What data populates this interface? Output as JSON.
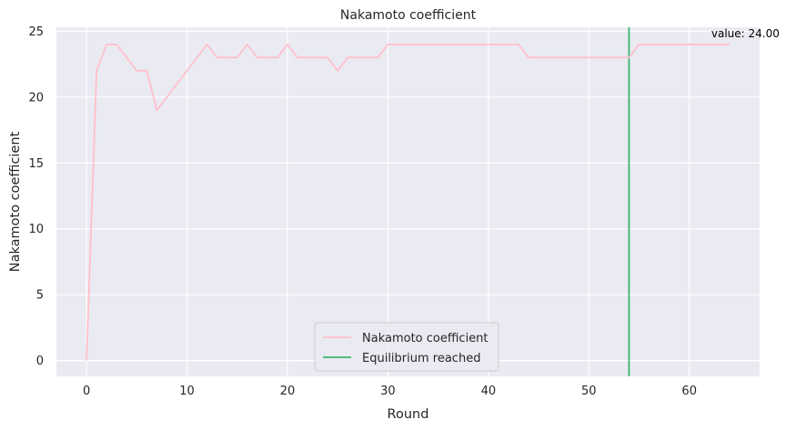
{
  "chart_data": {
    "type": "line",
    "title": "Nakamoto coefficient",
    "xlabel": "Round",
    "ylabel": "Nakamoto coefficient",
    "xlim": [
      -3,
      67
    ],
    "ylim": [
      -1.2,
      25.3
    ],
    "xticks": [
      0,
      10,
      20,
      30,
      40,
      50,
      60
    ],
    "yticks": [
      0,
      5,
      10,
      15,
      20,
      25
    ],
    "grid": true,
    "legend_position": "lower-center",
    "series": [
      {
        "name": "Nakamoto coefficient",
        "color": "#ffc0cb",
        "x": [
          0,
          1,
          2,
          3,
          4,
          5,
          6,
          7,
          8,
          9,
          10,
          11,
          12,
          13,
          14,
          15,
          16,
          17,
          18,
          19,
          20,
          21,
          22,
          23,
          24,
          25,
          26,
          27,
          28,
          29,
          30,
          31,
          32,
          33,
          34,
          35,
          36,
          37,
          38,
          39,
          40,
          41,
          42,
          43,
          44,
          45,
          46,
          47,
          48,
          49,
          50,
          51,
          52,
          53,
          54,
          55,
          56,
          57,
          58,
          59,
          60,
          61,
          62,
          63,
          64
        ],
        "y": [
          0,
          22,
          24,
          24,
          23,
          22,
          22,
          19,
          20,
          21,
          22,
          23,
          24,
          23,
          23,
          23,
          24,
          23,
          23,
          23,
          24,
          23,
          23,
          23,
          23,
          22,
          23,
          23,
          23,
          23,
          24,
          24,
          24,
          24,
          24,
          24,
          24,
          24,
          24,
          24,
          24,
          24,
          24,
          24,
          23,
          23,
          23,
          23,
          23,
          23,
          23,
          23,
          23,
          23,
          23,
          24,
          24,
          24,
          24,
          24,
          24,
          24,
          24,
          24,
          24
        ]
      }
    ],
    "vlines": [
      {
        "name": "Equilibrium reached",
        "x": 54,
        "color": "#3cb371"
      }
    ],
    "annotations": [
      {
        "text": "value: 24.00",
        "x": 64,
        "y": 24
      }
    ]
  }
}
